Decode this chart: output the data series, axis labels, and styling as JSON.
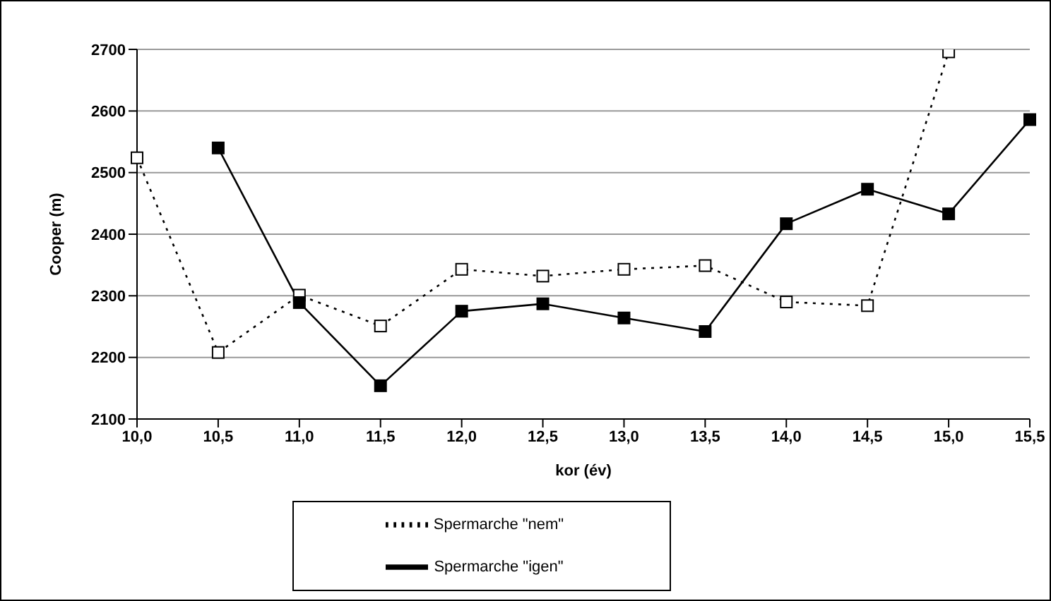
{
  "chart_data": {
    "type": "line",
    "xlabel": "kor (év)",
    "ylabel": "Cooper (m)",
    "categories": [
      "10,0",
      "10,5",
      "11,0",
      "11,5",
      "12,0",
      "12,5",
      "13,0",
      "13,5",
      "14,0",
      "14,5",
      "15,0",
      "15,5"
    ],
    "series": [
      {
        "name": "Spermarche \"nem\"",
        "color": "#000000",
        "line_style": "dotted",
        "values": [
          2524,
          2208,
          2301,
          2251,
          2343,
          2332,
          2343,
          2349,
          2290,
          2284,
          2696,
          null
        ]
      },
      {
        "name": "Spermarche \"igen\"",
        "color": "#000000",
        "line_style": "solid",
        "values": [
          null,
          2540,
          2289,
          2154,
          2275,
          2287,
          2264,
          2242,
          2417,
          2473,
          2433,
          2586
        ]
      }
    ],
    "ylim": [
      2100,
      2700
    ],
    "yticks": [
      2100,
      2200,
      2300,
      2400,
      2500,
      2600,
      2700
    ],
    "grid": "y",
    "legend": "bottom",
    "marker": "square"
  }
}
